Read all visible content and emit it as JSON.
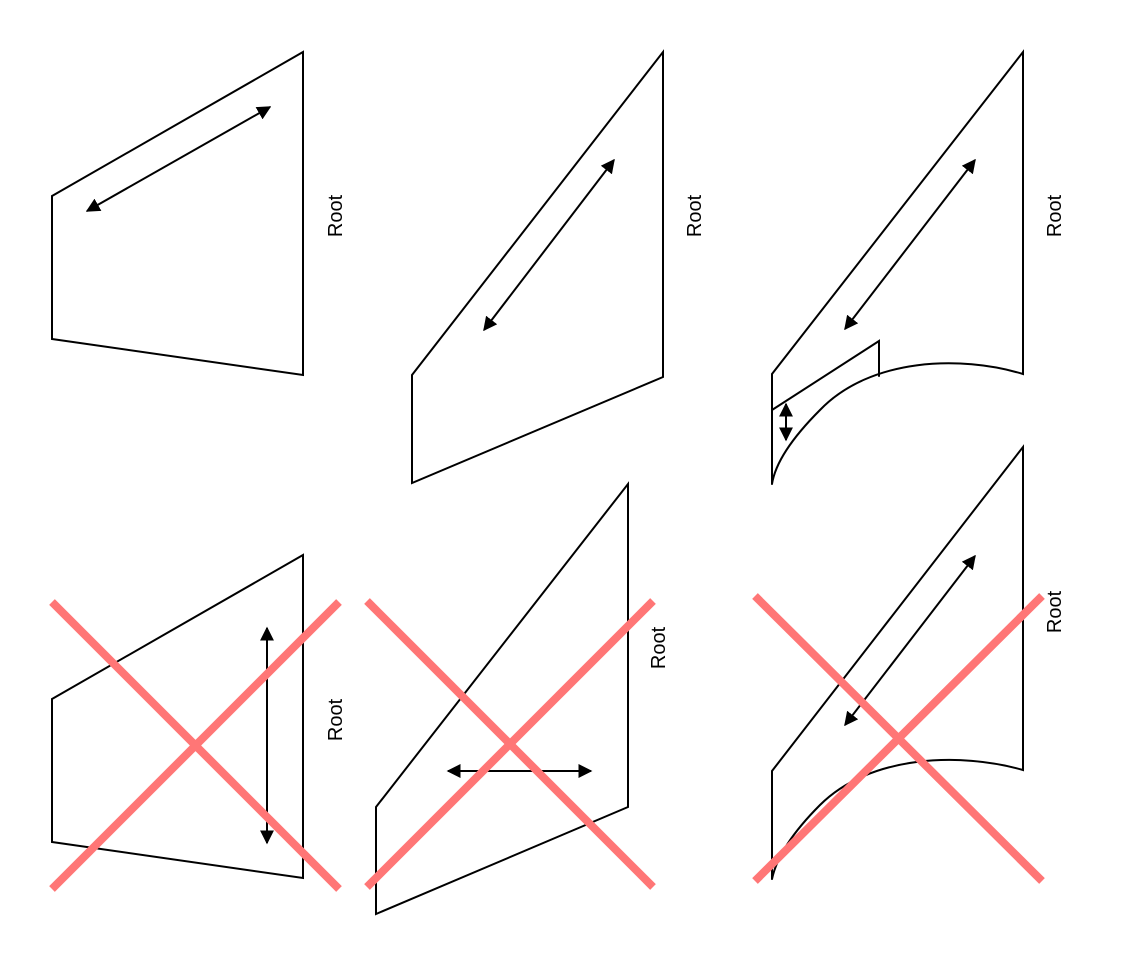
{
  "label_text": "Root",
  "panels": [
    {
      "id": "top-left",
      "label": "Root",
      "rejected": false
    },
    {
      "id": "top-middle",
      "label": "Root",
      "rejected": false
    },
    {
      "id": "top-right",
      "label": "Root",
      "rejected": false
    },
    {
      "id": "bottom-left",
      "label": "Root",
      "rejected": true
    },
    {
      "id": "bottom-middle",
      "label": "Root",
      "rejected": true
    },
    {
      "id": "bottom-right",
      "label": "Root",
      "rejected": true
    }
  ],
  "colors": {
    "outline": "#000000",
    "cross": "#ff7676",
    "background": "#ffffff"
  }
}
